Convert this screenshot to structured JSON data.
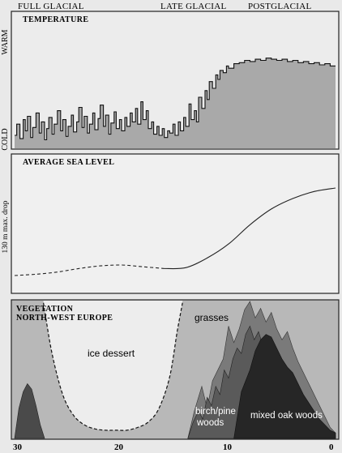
{
  "chart_data": [
    {
      "type": "line",
      "title": "TEMPERATURE",
      "ylabel_top": "WARM",
      "ylabel_bottom": "COLD",
      "periods": [
        "FULL GLACIAL",
        "LATE GLACIAL",
        "POSTGLACIAL"
      ],
      "x": [
        30,
        29.8,
        29.5,
        29.2,
        29,
        28.8,
        28.5,
        28.3,
        28,
        27.7,
        27.5,
        27.2,
        27,
        26.8,
        26.5,
        26.3,
        26,
        25.7,
        25.5,
        25.2,
        25,
        24.7,
        24.5,
        24.2,
        24,
        23.7,
        23.5,
        23.2,
        23,
        22.7,
        22.5,
        22.2,
        22,
        21.7,
        21.5,
        21.2,
        21,
        20.7,
        20.5,
        20.2,
        20,
        19.7,
        19.5,
        19.2,
        19,
        18.7,
        18.5,
        18.2,
        18,
        17.7,
        17.5,
        17.2,
        17,
        16.7,
        16.5,
        16.2,
        16,
        15.7,
        15.5,
        15.2,
        15,
        14.7,
        14.5,
        14.2,
        14,
        13.7,
        13.5,
        13.2,
        13,
        12.8,
        12.5,
        12.2,
        12,
        11.8,
        11.5,
        11.2,
        11,
        10.8,
        10.5,
        10.2,
        10,
        9.5,
        9,
        8.5,
        8,
        7.5,
        7,
        6.5,
        6,
        5.5,
        5,
        4.5,
        4,
        3.5,
        3,
        2.5,
        2,
        1.5,
        1,
        0.5,
        0
      ],
      "y": [
        8,
        18,
        5,
        22,
        12,
        25,
        6,
        15,
        28,
        10,
        20,
        4,
        14,
        24,
        9,
        18,
        30,
        12,
        22,
        7,
        16,
        26,
        11,
        20,
        33,
        15,
        25,
        10,
        18,
        28,
        13,
        23,
        35,
        16,
        26,
        9,
        19,
        29,
        14,
        22,
        12,
        24,
        16,
        28,
        20,
        32,
        18,
        38,
        22,
        30,
        14,
        20,
        9,
        16,
        8,
        14,
        6,
        12,
        10,
        18,
        8,
        20,
        12,
        24,
        16,
        36,
        22,
        30,
        20,
        42,
        32,
        48,
        40,
        56,
        50,
        62,
        58,
        66,
        64,
        70,
        68,
        72,
        73,
        75,
        74,
        76,
        75,
        77,
        76,
        75,
        76,
        74,
        75,
        73,
        74,
        72,
        73,
        71,
        72,
        70,
        70
      ],
      "ylim": [
        0,
        100
      ]
    },
    {
      "type": "line",
      "title": "AVERAGE SEA LEVEL",
      "ylabel": "130 m max. drop",
      "x": [
        30,
        28,
        26,
        24,
        22,
        20,
        18,
        16,
        14,
        12,
        10,
        8,
        6,
        4,
        2,
        0
      ],
      "y": [
        0,
        1.5,
        4,
        8,
        11,
        12,
        10,
        8,
        9,
        20,
        36,
        58,
        76,
        88,
        96,
        100
      ],
      "ylim": [
        0,
        100
      ],
      "dashed_until": 16
    },
    {
      "type": "area",
      "title_line1": "VEGETATION",
      "title_line2": "NORTH-WEST EUROPE",
      "xticks": [
        "30",
        "20",
        "10",
        "0"
      ],
      "labels": {
        "ice": "ice dessert",
        "grasses": "grasses",
        "birch1": "birch/pine",
        "birch2": "woods",
        "oak": "mixed oak woods"
      },
      "ice_boundary": {
        "x": [
          27.3,
          26.5,
          25.5,
          24.5,
          23.5,
          22.5,
          21.5,
          20.5,
          19.5,
          18.5,
          17.5,
          16.5,
          15.5,
          14.8,
          14.3
        ],
        "y": [
          99,
          62,
          32,
          17,
          10,
          7,
          6,
          6,
          6,
          8,
          12,
          22,
          45,
          78,
          99
        ],
        "ylim": [
          0,
          100
        ]
      },
      "grasses": {
        "x": [
          13.8,
          13.2,
          12.5,
          12,
          11.5,
          11,
          10.5,
          10,
          9.5,
          9,
          8.5,
          8,
          7.5,
          7,
          6.5,
          6,
          5.5,
          5,
          4.5,
          4,
          3.5,
          3,
          2.5,
          2,
          1.5,
          1,
          0.5,
          0
        ],
        "y": [
          0,
          20,
          38,
          22,
          42,
          50,
          58,
          82,
          70,
          80,
          94,
          100,
          88,
          95,
          85,
          92,
          80,
          72,
          78,
          66,
          56,
          48,
          40,
          32,
          24,
          16,
          8,
          4
        ],
        "ylim": [
          0,
          100
        ]
      },
      "birch": {
        "x": [
          13.8,
          13.3,
          12.8,
          12.4,
          12,
          11.6,
          11.2,
          10.8,
          10.4,
          10,
          9.6,
          9.2,
          8.8,
          8.4,
          8,
          7.6,
          7.2,
          6.8,
          6.4,
          6,
          5.5,
          5,
          4.5,
          4,
          3.5,
          3,
          2.5,
          2,
          1.5,
          1,
          0.5,
          0
        ],
        "y": [
          0,
          12,
          20,
          14,
          30,
          24,
          38,
          32,
          50,
          44,
          58,
          66,
          62,
          76,
          82,
          72,
          78,
          68,
          74,
          64,
          56,
          50,
          46,
          42,
          36,
          30,
          24,
          18,
          12,
          8,
          4,
          2
        ],
        "ylim": [
          0,
          100
        ]
      },
      "oak": {
        "x": [
          9.5,
          8.8,
          8,
          7.5,
          7,
          6.5,
          6,
          5.5,
          5,
          4.5,
          4,
          3.5,
          3,
          2.5,
          2,
          1.5,
          1,
          0.5,
          0
        ],
        "y": [
          0,
          34,
          50,
          64,
          72,
          76,
          74,
          66,
          58,
          52,
          48,
          40,
          32,
          26,
          20,
          14,
          10,
          6,
          4
        ],
        "ylim": [
          0,
          100
        ]
      },
      "early_woods": {
        "x": [
          30,
          29.6,
          29.2,
          28.8,
          28.4,
          28,
          27.6,
          27.2
        ],
        "y": [
          0,
          22,
          34,
          40,
          36,
          24,
          10,
          0
        ],
        "ylim": [
          0,
          100
        ]
      }
    }
  ]
}
